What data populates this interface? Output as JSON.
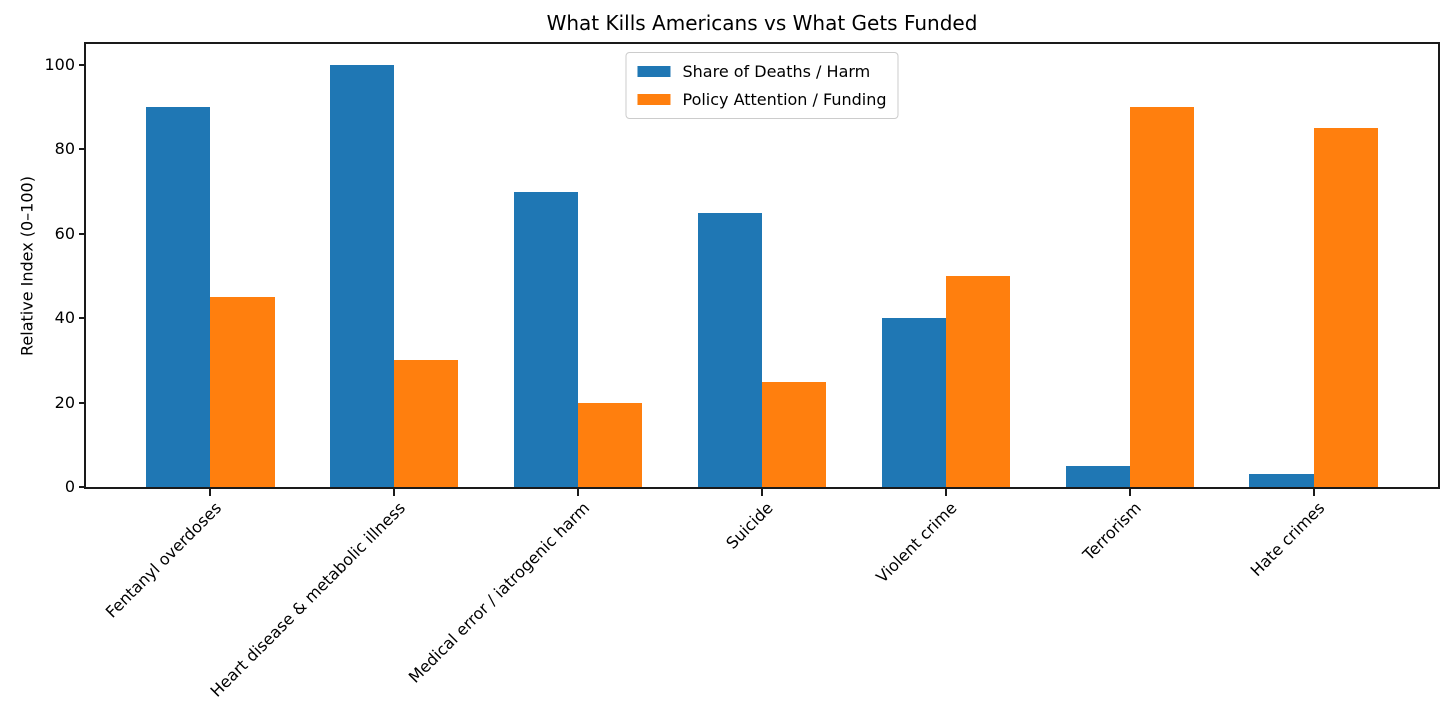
{
  "chart_data": {
    "type": "bar",
    "title": "What Kills Americans vs What Gets Funded",
    "ylabel": "Relative Index (0–100)",
    "xlabel": "",
    "categories": [
      "Fentanyl overdoses",
      "Heart disease & metabolic illness",
      "Medical error / iatrogenic harm",
      "Suicide",
      "Violent crime",
      "Terrorism",
      "Hate crimes"
    ],
    "series": [
      {
        "name": "Share of Deaths / Harm",
        "color": "#1f77b4",
        "values": [
          90,
          100,
          70,
          65,
          40,
          5,
          3
        ]
      },
      {
        "name": "Policy Attention / Funding",
        "color": "#ff7f0e",
        "values": [
          45,
          30,
          20,
          25,
          50,
          90,
          85
        ]
      }
    ],
    "ylim": [
      0,
      105
    ],
    "yticks": [
      0,
      20,
      40,
      60,
      80,
      100
    ],
    "bar_width": 0.35,
    "x_tick_rotation": 45,
    "grid": false,
    "legend_position": "upper center",
    "spine_color": "#1a1a1a",
    "background_color": "#ffffff"
  }
}
